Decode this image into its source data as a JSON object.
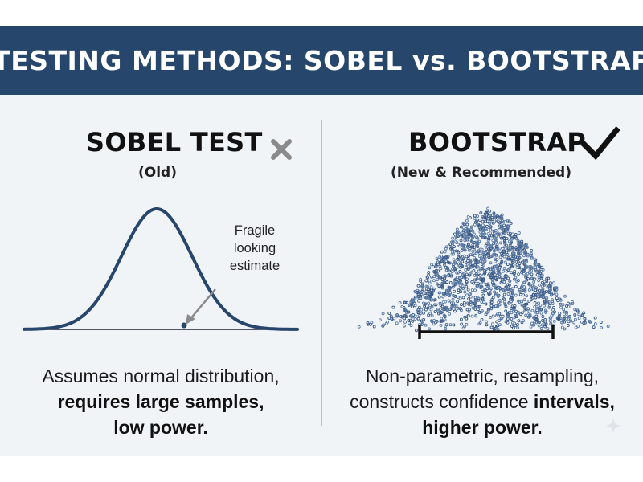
{
  "header": {
    "title": "TESTING METHODS: SOBEL vs. BOOTSTRAP"
  },
  "left": {
    "title": "SOBEL TEST",
    "subtitle": "(Old)",
    "status_icon": "x-mark-icon",
    "annotation": [
      "Fragile",
      "looking",
      "estimate"
    ],
    "description": {
      "line1": "Assumes normal distribution,",
      "line2": "requires large samples,",
      "line3": "low power."
    }
  },
  "right": {
    "title": "BOOTSTRAP",
    "subtitle": "(New & Recommended)",
    "status_icon": "check-mark-icon",
    "description": {
      "line1": "Non-parametric, resampling,",
      "line2_plain": "constructs confidence ",
      "line2_bold": "intervals,",
      "line3": "higher power."
    }
  },
  "colors": {
    "banner": "#26466b",
    "panel": "#f1f4f7",
    "curve": "#26466b",
    "dots": "#3b5b86",
    "x_mark": "#8a8a8a",
    "check_mark": "#111111"
  }
}
